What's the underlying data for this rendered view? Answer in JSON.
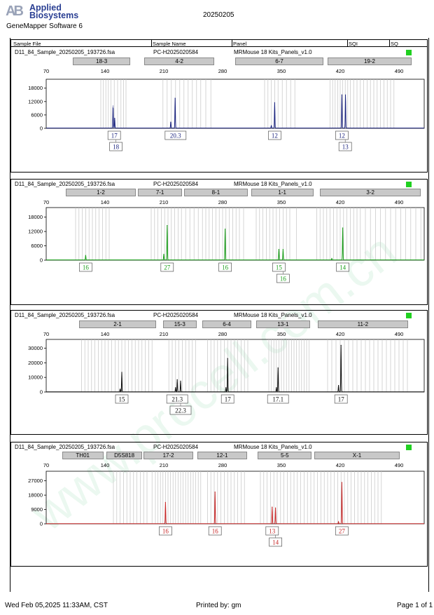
{
  "header": {
    "logo_letters": "AB",
    "brand_line1": "Applied",
    "brand_line2": "Biosystems",
    "software": "GeneMapper Software 6",
    "run_date": "20250205"
  },
  "columns": {
    "sample_file": "Sample File",
    "sample_name": "Sample Name",
    "panel": "Panel",
    "sqi": "SQI",
    "sq": "SQ"
  },
  "watermark": "www.procell.com.cn",
  "footer": {
    "printed_at": "Wed Feb 05,2025 11:33AM, CST",
    "printed_by": "Printed by: gm",
    "page": "Page 1 of 1"
  },
  "status_color": "#20d020",
  "chart_data": [
    {
      "type": "line",
      "sample_file": "D11_84_Sample_20250205_193726.fsa",
      "sample_name": "PC-H2025020584",
      "panel": "MRMouse 18 Kits_Panels_v1.0",
      "dye_color": "#1a237e",
      "x_ticks": [
        70,
        140,
        210,
        280,
        350,
        420,
        490
      ],
      "y_ticks": [
        0,
        6000,
        12000,
        18000
      ],
      "ylim": [
        0,
        22000
      ],
      "markers": [
        {
          "label": "18-3",
          "start": 102,
          "end": 170
        },
        {
          "label": "4-2",
          "start": 187,
          "end": 270
        },
        {
          "label": "6-7",
          "start": 295,
          "end": 400
        },
        {
          "label": "19-2",
          "start": 405,
          "end": 505
        }
      ],
      "bins": [
        135,
        138,
        141,
        144,
        147,
        151,
        155,
        159,
        162,
        165,
        209,
        214,
        219,
        224,
        229,
        234,
        239,
        244,
        249,
        254,
        260,
        266,
        330,
        334,
        338,
        342,
        346,
        351,
        356,
        361,
        366,
        408,
        411,
        414,
        417,
        420,
        423,
        426,
        429,
        432,
        436,
        440,
        444,
        448,
        452,
        456,
        460,
        464,
        468,
        472,
        476,
        480,
        484
      ],
      "peaks": [
        {
          "x": 149.6,
          "h": 10000
        },
        {
          "x": 151.5,
          "h": 4500
        },
        {
          "x": 218.3,
          "h": 2800
        },
        {
          "x": 223.5,
          "h": 13500
        },
        {
          "x": 338,
          "h": 1200
        },
        {
          "x": 342,
          "h": 11500
        },
        {
          "x": 422,
          "h": 15000
        },
        {
          "x": 426.3,
          "h": 15000
        }
      ],
      "alleles": [
        {
          "label": "17",
          "x": 151,
          "row": 1
        },
        {
          "label": "18",
          "x": 153,
          "row": 2
        },
        {
          "label": "20.3",
          "x": 224,
          "row": 1
        },
        {
          "label": "12",
          "x": 342,
          "row": 1
        },
        {
          "label": "12",
          "x": 422,
          "row": 1
        },
        {
          "label": "13",
          "x": 426,
          "row": 2
        }
      ]
    },
    {
      "type": "line",
      "sample_file": "D11_84_Sample_20250205_193726.fsa",
      "sample_name": "PC-H2025020584",
      "panel": "MRMouse 18 Kits_Panels_v1.0",
      "dye_color": "#1a9e1a",
      "x_ticks": [
        70,
        140,
        210,
        280,
        350,
        420,
        490
      ],
      "y_ticks": [
        0,
        6000,
        12000,
        18000
      ],
      "ylim": [
        0,
        22000
      ],
      "markers": [
        {
          "label": "1-2",
          "start": 93,
          "end": 177
        },
        {
          "label": "7-1",
          "start": 179,
          "end": 232
        },
        {
          "label": "8-1",
          "start": 234,
          "end": 310
        },
        {
          "label": "1-1",
          "start": 314,
          "end": 388
        },
        {
          "label": "3-2",
          "start": 396,
          "end": 516
        }
      ],
      "bins": [
        105,
        109,
        113,
        117,
        121,
        125,
        129,
        133,
        137,
        141,
        145,
        195,
        199,
        203,
        207,
        211,
        215,
        219,
        223,
        227,
        231,
        236,
        241,
        246,
        251,
        256,
        260,
        264,
        268,
        272,
        276,
        280,
        284,
        288,
        292,
        296,
        300,
        305,
        320,
        324,
        328,
        332,
        336,
        340,
        344,
        348,
        352,
        356,
        360,
        368,
        392,
        396,
        400,
        404,
        408,
        412,
        416,
        420,
        424,
        428,
        432,
        436,
        440,
        444,
        450,
        456,
        462,
        468,
        474,
        480,
        486,
        492,
        498,
        504,
        510,
        516
      ],
      "peaks": [
        {
          "x": 117,
          "h": 2000
        },
        {
          "x": 210,
          "h": 2500
        },
        {
          "x": 214,
          "h": 14500
        },
        {
          "x": 283,
          "h": 13000
        },
        {
          "x": 347,
          "h": 4500
        },
        {
          "x": 352,
          "h": 4500
        },
        {
          "x": 410,
          "h": 600
        },
        {
          "x": 423,
          "h": 13500
        }
      ],
      "alleles": [
        {
          "label": "16",
          "x": 117,
          "row": 1
        },
        {
          "label": "27",
          "x": 214,
          "row": 1
        },
        {
          "label": "16",
          "x": 283,
          "row": 1
        },
        {
          "label": "15",
          "x": 347,
          "row": 1
        },
        {
          "label": "16",
          "x": 352,
          "row": 2
        },
        {
          "label": "14",
          "x": 423,
          "row": 1
        }
      ]
    },
    {
      "type": "line",
      "sample_file": "D11_84_Sample_20250205_193726.fsa",
      "sample_name": "PC-H2025020584",
      "panel": "MRMouse 18 Kits_Panels_v1.0",
      "dye_color": "#111111",
      "x_ticks": [
        70,
        140,
        210,
        280,
        350,
        420,
        490
      ],
      "y_ticks": [
        0,
        10000,
        20000,
        30000
      ],
      "ylim": [
        0,
        36000
      ],
      "markers": [
        {
          "label": "2-1",
          "start": 109,
          "end": 201
        },
        {
          "label": "15-3",
          "start": 209,
          "end": 249
        },
        {
          "label": "6-4",
          "start": 256,
          "end": 314
        },
        {
          "label": "13-1",
          "start": 320,
          "end": 384
        },
        {
          "label": "11-2",
          "start": 393,
          "end": 501
        }
      ],
      "bins": [
        112,
        116,
        120,
        124,
        128,
        132,
        136,
        140,
        144,
        148,
        152,
        156,
        160,
        164,
        168,
        172,
        176,
        180,
        184,
        188,
        192,
        196,
        216,
        220,
        224,
        228,
        232,
        236,
        240,
        244,
        248,
        262,
        266,
        270,
        274,
        278,
        282,
        286,
        290,
        294,
        298,
        302,
        306,
        310,
        335,
        338,
        341,
        344,
        347,
        350,
        353,
        356,
        359,
        362,
        365,
        368,
        371,
        374,
        377,
        380,
        383,
        405,
        410,
        415,
        420,
        425,
        430,
        435,
        440,
        445,
        450,
        455,
        460,
        465,
        470,
        475,
        480,
        485,
        490,
        495,
        500
      ],
      "peaks": [
        {
          "x": 158,
          "h": 2000
        },
        {
          "x": 160,
          "h": 13500
        },
        {
          "x": 224,
          "h": 3000
        },
        {
          "x": 226,
          "h": 8500
        },
        {
          "x": 230,
          "h": 7500
        },
        {
          "x": 284,
          "h": 3000
        },
        {
          "x": 286,
          "h": 23000
        },
        {
          "x": 344,
          "h": 3000
        },
        {
          "x": 346,
          "h": 16500
        },
        {
          "x": 418,
          "h": 4500
        },
        {
          "x": 421,
          "h": 32000
        }
      ],
      "alleles": [
        {
          "label": "15",
          "x": 160,
          "row": 1
        },
        {
          "label": "21.3",
          "x": 226,
          "row": 1
        },
        {
          "label": "22.3",
          "x": 230,
          "row": 2
        },
        {
          "label": "17",
          "x": 286,
          "row": 1
        },
        {
          "label": "17.1",
          "x": 346,
          "row": 1
        },
        {
          "label": "17",
          "x": 421,
          "row": 1
        }
      ]
    },
    {
      "type": "line",
      "sample_file": "D11_84_Sample_20250205_193726.fsa",
      "sample_name": "PC-H2025020584",
      "panel": "MRMouse 18 Kits_Panels_v1.0",
      "dye_color": "#c62828",
      "x_ticks": [
        70,
        140,
        210,
        280,
        350,
        420,
        490
      ],
      "y_ticks": [
        0,
        9000,
        18000,
        27000
      ],
      "ylim": [
        0,
        33000
      ],
      "markers": [
        {
          "label": "TH01",
          "start": 89,
          "end": 138
        },
        {
          "label": "D5S818",
          "start": 142,
          "end": 184
        },
        {
          "label": "17-2",
          "start": 186,
          "end": 245
        },
        {
          "label": "12-1",
          "start": 250,
          "end": 309
        },
        {
          "label": "5-5",
          "start": 322,
          "end": 386
        },
        {
          "label": "X-1",
          "start": 389,
          "end": 491
        }
      ],
      "bins": [
        150,
        154,
        158,
        162,
        166,
        170,
        174,
        178,
        182,
        186,
        190,
        196,
        200,
        203,
        206,
        209,
        212,
        215,
        218,
        221,
        224,
        227,
        230,
        233,
        236,
        239,
        242,
        245,
        248,
        251,
        254,
        262,
        266,
        270,
        274,
        278,
        282,
        286,
        290,
        294,
        298,
        302,
        306,
        325,
        329,
        333,
        337,
        341,
        345,
        349,
        353,
        357,
        361,
        365,
        369,
        373,
        377,
        381,
        385,
        389,
        393,
        397,
        401,
        405,
        409,
        413,
        417,
        421,
        425,
        429,
        433,
        437,
        441,
        445,
        449,
        453,
        457,
        461,
        465,
        469
      ],
      "peaks": [
        {
          "x": 212,
          "h": 13500
        },
        {
          "x": 271,
          "h": 20000
        },
        {
          "x": 339,
          "h": 10500
        },
        {
          "x": 343,
          "h": 10000
        },
        {
          "x": 418,
          "h": 1200
        },
        {
          "x": 422,
          "h": 26000
        }
      ],
      "alleles": [
        {
          "label": "16",
          "x": 212,
          "row": 1
        },
        {
          "label": "16",
          "x": 271,
          "row": 1
        },
        {
          "label": "13",
          "x": 339,
          "row": 1
        },
        {
          "label": "14",
          "x": 343,
          "row": 2
        },
        {
          "label": "27",
          "x": 422,
          "row": 1
        }
      ]
    }
  ]
}
